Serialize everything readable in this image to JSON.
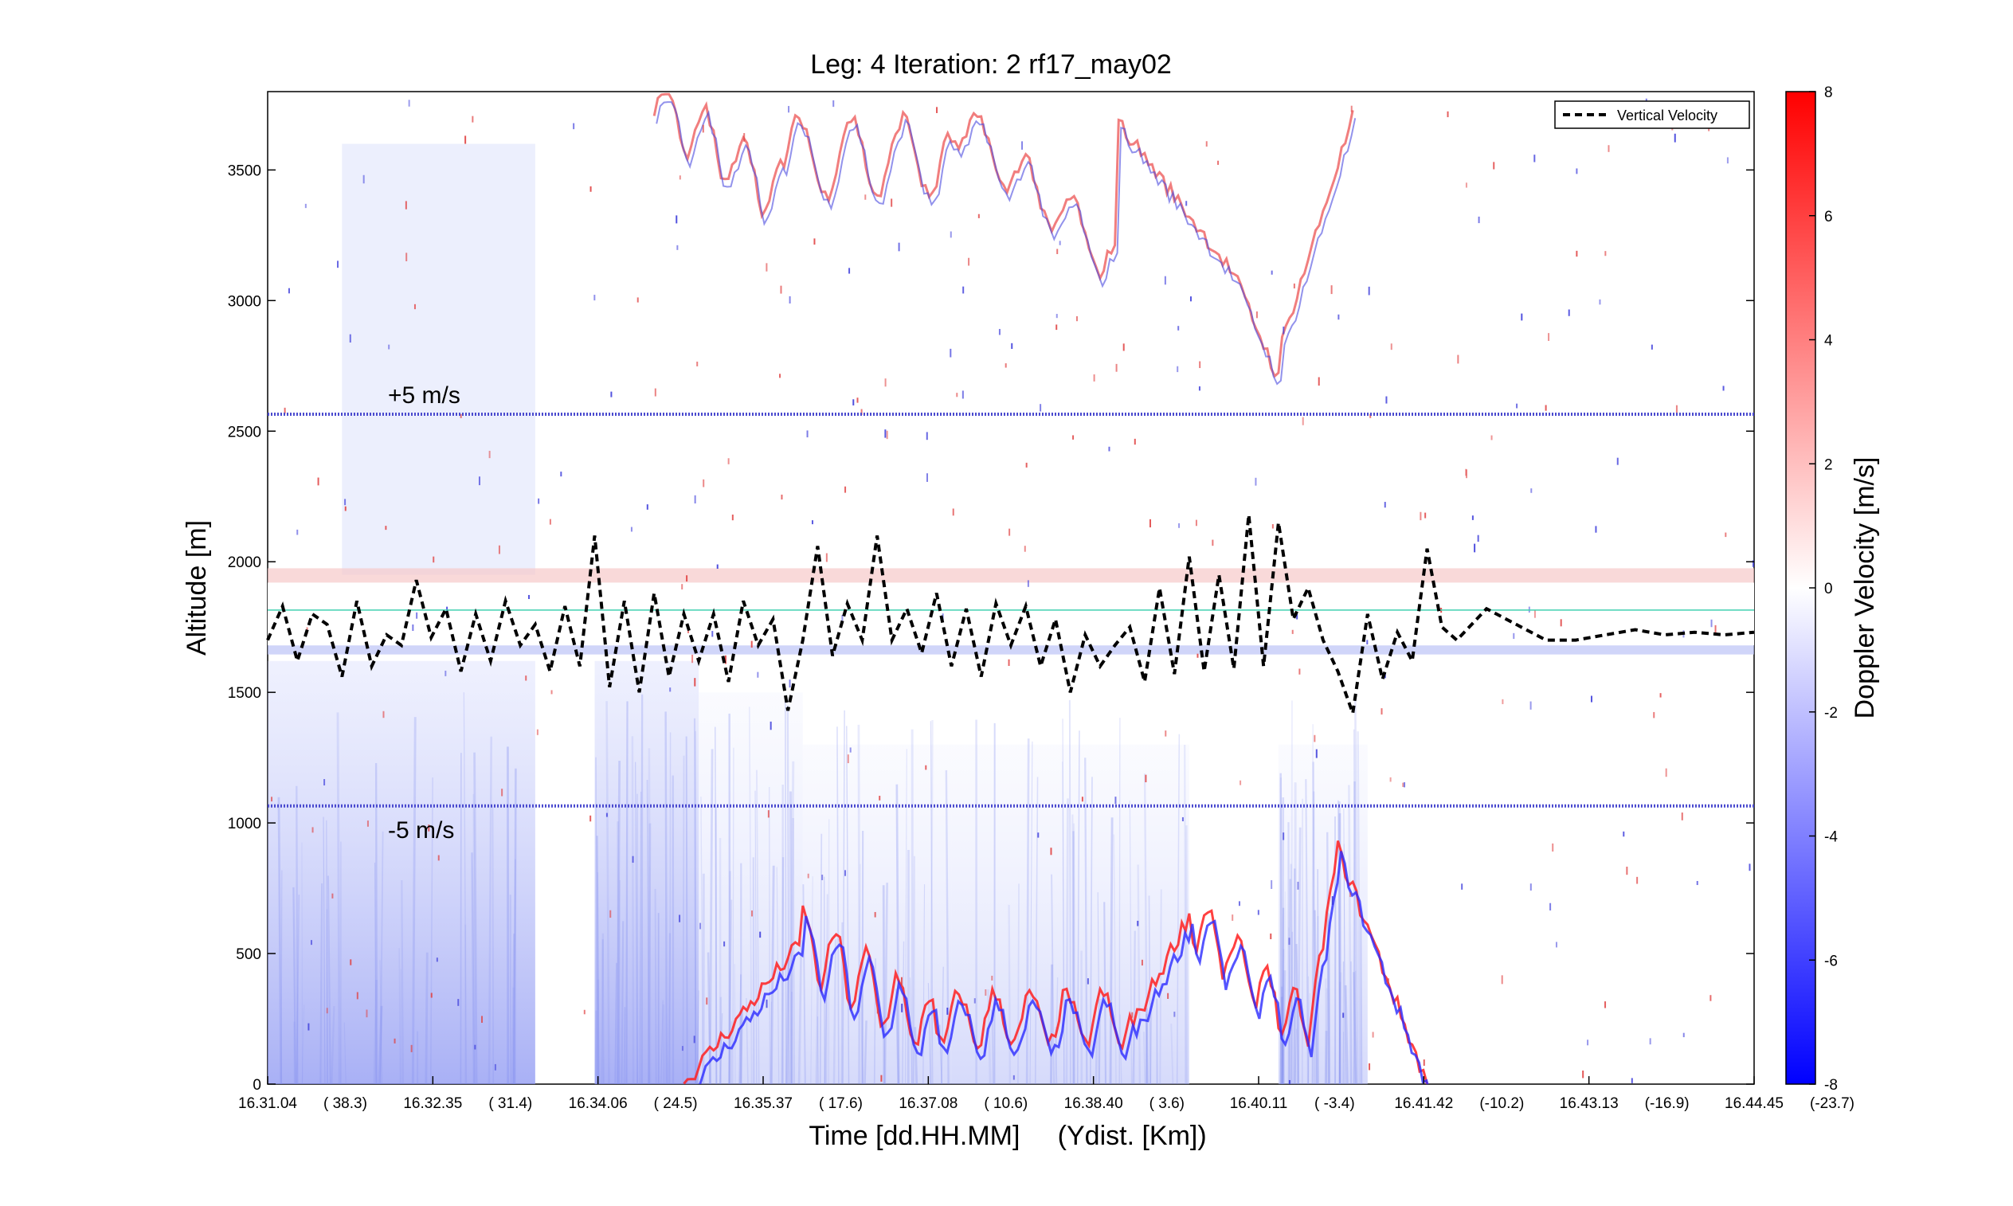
{
  "chart_data": {
    "type": "heatmap",
    "title": "Leg: 4  Iteration: 2  rf17_may02",
    "xlabel": "Time [dd.HH.MM]     (Ydist. [Km])",
    "ylabel": "Altitude [m]",
    "colorbar_label": "Doppler Velocity [m/s]",
    "x_ticks": [
      {
        "time": "16.31.04",
        "ydist": "( 38.3)"
      },
      {
        "time": "16.32.35",
        "ydist": "( 31.4)"
      },
      {
        "time": "16.34.06",
        "ydist": "( 24.5)"
      },
      {
        "time": "16.35.37",
        "ydist": "( 17.6)"
      },
      {
        "time": "16.37.08",
        "ydist": "( 10.6)"
      },
      {
        "time": "16.38.40",
        "ydist": "( 3.6)"
      },
      {
        "time": "16.40.11",
        "ydist": "( -3.4)"
      },
      {
        "time": "16.41.42",
        "ydist": "(-10.2)"
      },
      {
        "time": "16.43.13",
        "ydist": "(-16.9)"
      },
      {
        "time": "16.44.45",
        "ydist": "(-23.7)"
      }
    ],
    "ylim": [
      0,
      3800
    ],
    "y_ticks": [
      0,
      500,
      1000,
      1500,
      2000,
      2500,
      3000,
      3500
    ],
    "clim": [
      -8,
      8
    ],
    "colorbar_ticks": [
      8,
      6,
      4,
      2,
      0,
      -2,
      -4,
      -6,
      -8
    ],
    "colormap": {
      "low": "#0000ff",
      "mid": "#ffffff",
      "high": "#ff0000"
    },
    "legend": {
      "entries": [
        "Vertical Velocity"
      ],
      "position": "top-right",
      "line_color": "#000000",
      "line_style": "dashed"
    },
    "reference_lines": [
      {
        "label": "+5 m/s",
        "y": 2565,
        "color": "#4a4acf"
      },
      {
        "label": "-5 m/s",
        "y": 1065,
        "color": "#4a4acf"
      },
      {
        "label": "",
        "y": 1815,
        "color": "#40d0b0"
      }
    ],
    "vertical_velocity_series": {
      "name": "Vertical Velocity",
      "x_fraction": [
        0.0,
        0.01,
        0.02,
        0.03,
        0.04,
        0.05,
        0.06,
        0.07,
        0.08,
        0.09,
        0.1,
        0.11,
        0.12,
        0.13,
        0.14,
        0.15,
        0.16,
        0.17,
        0.18,
        0.19,
        0.2,
        0.21,
        0.22,
        0.23,
        0.24,
        0.25,
        0.26,
        0.27,
        0.28,
        0.29,
        0.3,
        0.31,
        0.32,
        0.33,
        0.34,
        0.35,
        0.36,
        0.37,
        0.38,
        0.39,
        0.4,
        0.41,
        0.42,
        0.43,
        0.44,
        0.45,
        0.46,
        0.47,
        0.48,
        0.49,
        0.5,
        0.51,
        0.52,
        0.53,
        0.54,
        0.55,
        0.56,
        0.57,
        0.58,
        0.59,
        0.6,
        0.61,
        0.62,
        0.63,
        0.64,
        0.65,
        0.66,
        0.67,
        0.68,
        0.69,
        0.7,
        0.71,
        0.72,
        0.73,
        0.74,
        0.75,
        0.76,
        0.77,
        0.78,
        0.79,
        0.8,
        0.82,
        0.84,
        0.86,
        0.88,
        0.9,
        0.92,
        0.94,
        0.96,
        0.98,
        1.0
      ],
      "altitude": [
        1700,
        1830,
        1620,
        1800,
        1760,
        1560,
        1850,
        1600,
        1720,
        1680,
        1930,
        1710,
        1820,
        1580,
        1800,
        1620,
        1850,
        1680,
        1760,
        1580,
        1830,
        1600,
        2100,
        1520,
        1850,
        1500,
        1880,
        1560,
        1800,
        1620,
        1800,
        1540,
        1850,
        1680,
        1780,
        1430,
        1700,
        2060,
        1640,
        1840,
        1700,
        2100,
        1700,
        1820,
        1650,
        1880,
        1600,
        1820,
        1560,
        1840,
        1680,
        1830,
        1600,
        1780,
        1500,
        1720,
        1600,
        1680,
        1750,
        1540,
        1900,
        1570,
        2020,
        1580,
        1950,
        1590,
        2180,
        1600,
        2150,
        1780,
        1900,
        1700,
        1580,
        1420,
        1800,
        1550,
        1730,
        1620,
        2050,
        1750,
        1700,
        1820,
        1760,
        1700,
        1700,
        1720,
        1740,
        1720,
        1730,
        1720,
        1730
      ]
    },
    "shaded_fields": [
      "blue (negative Doppler velocity) broad regions at altitudes 0–1600 m between 16.31.04 and 16.35.37",
      "alternating red/blue layer 0–900 m from 16.35.37 to 16.41.42",
      "red/blue layer near top 3000–3800 m from 16.35.00 to 16.41.30",
      "horizontal pink band near 1950 m and light blue band near 1660 m"
    ]
  }
}
